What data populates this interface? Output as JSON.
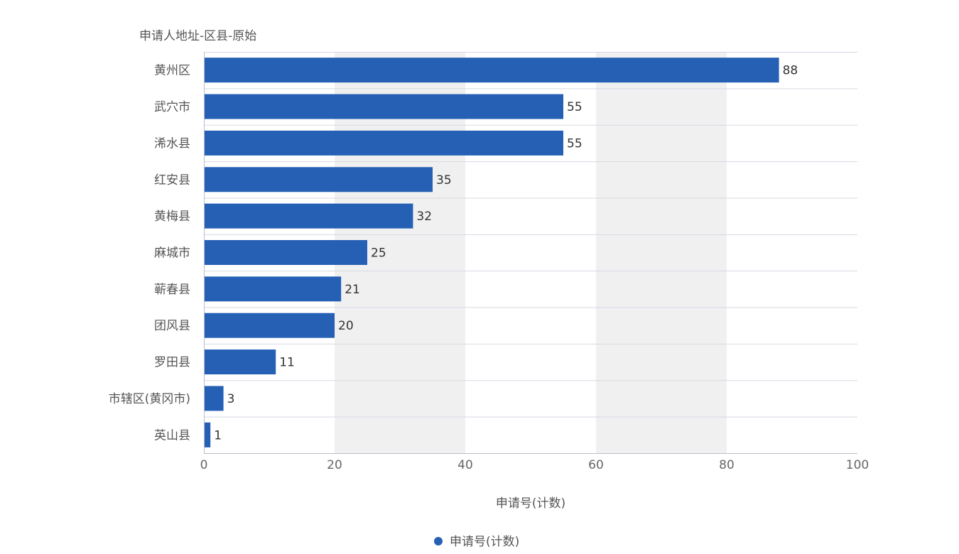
{
  "chart_data": {
    "type": "bar",
    "orientation": "horizontal",
    "y_axis_title": "申请人地址-区县-原始",
    "xlabel": "申请号(计数)",
    "categories": [
      "黄州区",
      "武穴市",
      "浠水县",
      "红安县",
      "黄梅县",
      "麻城市",
      "蕲春县",
      "团风县",
      "罗田县",
      "市辖区(黄冈市)",
      "英山县"
    ],
    "series": [
      {
        "name": "申请号(计数)",
        "values": [
          88,
          55,
          55,
          35,
          32,
          25,
          21,
          20,
          11,
          3,
          1
        ],
        "color": "#2560B5"
      }
    ],
    "xlim": [
      0,
      100
    ],
    "xticks": [
      0,
      20,
      40,
      60,
      80,
      100
    ],
    "grid": true,
    "legend_position": "bottom-center"
  },
  "colors": {
    "bar": "#2560B5",
    "band": "#F0F0F0",
    "gridline": "#D5D9E2",
    "axis": "#B8BFCC"
  }
}
